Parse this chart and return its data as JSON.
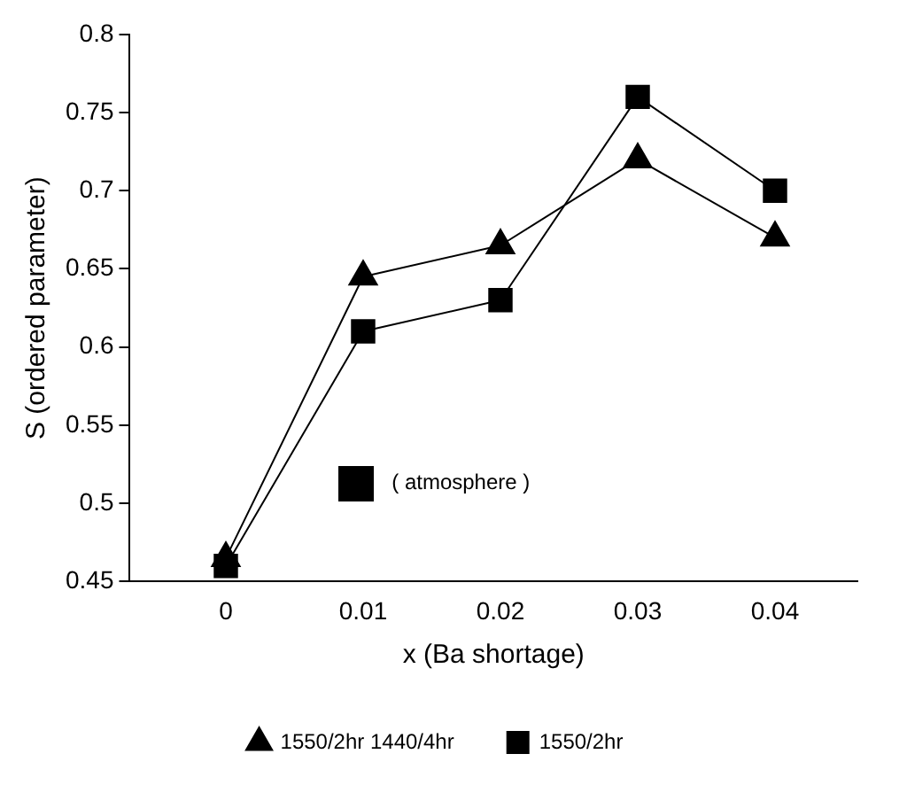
{
  "chart_data": {
    "type": "line",
    "xlabel": "x (Ba shortage)",
    "ylabel": "S (ordered parameter)",
    "x": [
      0,
      0.01,
      0.02,
      0.03,
      0.04
    ],
    "series": [
      {
        "name": "1550/2hr",
        "color": "#000000",
        "marker": "square",
        "values": [
          0.46,
          0.61,
          0.63,
          0.76,
          0.7
        ]
      },
      {
        "name": "1550/2hr 1440/4hr",
        "color": "#000000",
        "marker": "triangle",
        "values": [
          0.465,
          0.645,
          0.665,
          0.72,
          0.67
        ]
      }
    ],
    "xlim": [
      -0.007,
      0.046
    ],
    "xticks": [
      0,
      0.01,
      0.02,
      0.03,
      0.04
    ],
    "ylim": [
      0.45,
      0.8
    ],
    "yticks": [
      0.45,
      0.5,
      0.55,
      0.6,
      0.65,
      0.7,
      0.75,
      0.8
    ],
    "annotations": [
      "( atmosphere )"
    ],
    "grid": false,
    "legend": "bottom",
    "line_style": "solid"
  }
}
